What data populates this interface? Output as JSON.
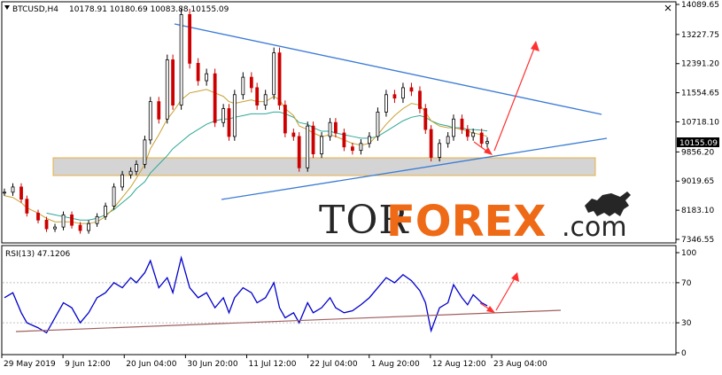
{
  "header": {
    "symbol": "BTCUSD,H4",
    "ohlc": "10178.91 10180.69 10083.88 10155.09"
  },
  "rsi_header": "RSI(13) 47.1206",
  "watermark": {
    "part1": "TOR",
    "part2": "FOREX",
    "part3": ".com"
  },
  "price_tag": "10155.09",
  "colors": {
    "bull": "#000000",
    "bear": "#cc0000",
    "ma_fast": "#c8a030",
    "ma_slow": "#2ea894",
    "trendline": "#3a7bd5",
    "support_zone": "#d4d4d4",
    "support_border": "#e8b040",
    "arrow": "#ff3030",
    "rsi_line": "#0000cc",
    "rsi_trend": "#a06060"
  },
  "icons": {
    "bull_logo": "bull-icon"
  },
  "chart_data": [
    {
      "type": "line",
      "panel": "price",
      "y_ticks": [
        "14089.65",
        "13227.75",
        "12391.20",
        "11554.65",
        "10718.10",
        "9856.20",
        "9019.65",
        "8183.10",
        "7346.55"
      ],
      "y_tick_values": [
        14089.65,
        13227.75,
        12391.2,
        11554.65,
        10718.1,
        9856.2,
        9019.65,
        8183.1,
        7346.55
      ],
      "x_ticks": [
        "29 May 2019",
        "9 Jun 12:00",
        "20 Jun 04:00",
        "30 Jun 20:00",
        "11 Jul 12:00",
        "22 Jul 04:00",
        "1 Aug 20:00",
        "12 Aug 12:00",
        "23 Aug 04:00"
      ],
      "ylim": [
        7346.55,
        14089.65
      ],
      "last_price": 10155.09,
      "x": [
        0,
        3,
        6,
        8,
        12,
        15,
        18,
        21,
        24,
        27,
        30,
        33,
        36,
        39,
        42,
        45,
        47,
        50,
        52,
        55,
        58,
        60,
        63,
        66,
        69,
        72,
        75,
        78,
        80,
        82,
        85,
        88,
        90,
        93,
        96,
        98,
        100,
        103,
        105,
        108,
        110,
        113,
        116,
        118,
        121,
        124,
        127,
        130,
        133,
        136,
        139,
        142,
        145,
        148,
        150,
        152,
        155,
        158,
        160,
        163,
        165,
        167,
        170,
        172
      ],
      "series": [
        {
          "type": "candlestick-close",
          "values": [
            8700,
            8850,
            8500,
            8100,
            7900,
            7650,
            7700,
            8050,
            7750,
            7600,
            7800,
            8000,
            8300,
            8850,
            9200,
            9300,
            9500,
            10200,
            11300,
            10800,
            12500,
            11200,
            13800,
            12400,
            11900,
            12100,
            10700,
            11100,
            10300,
            11500,
            12000,
            11700,
            11200,
            11500,
            12700,
            11200,
            10400,
            10300,
            9400,
            10600,
            9800,
            10300,
            10700,
            10400,
            10000,
            9900,
            10100,
            10300,
            11000,
            11500,
            11400,
            11700,
            11600,
            11100,
            10500,
            9700,
            10100,
            10300,
            10800,
            10500,
            10300,
            10400,
            10100,
            10155
          ]
        },
        {
          "name": "MA fast",
          "values": [
            8600,
            8550,
            8400,
            8250,
            8100,
            7950,
            7850,
            7850,
            7850,
            7800,
            7800,
            7850,
            8000,
            8250,
            8550,
            8850,
            9100,
            9500,
            9950,
            10350,
            10800,
            11000,
            11350,
            11550,
            11600,
            11650,
            11550,
            11450,
            11300,
            11250,
            11300,
            11350,
            11300,
            11300,
            11450,
            11350,
            11100,
            10900,
            10600,
            10500,
            10400,
            10300,
            10350,
            10300,
            10200,
            10100,
            10050,
            10100,
            10350,
            10650,
            10900,
            11100,
            11250,
            11200,
            11000,
            10750,
            10600,
            10550,
            10550,
            10500,
            10450,
            10400,
            10350,
            10300
          ]
        },
        {
          "name": "MA slow",
          "values": [
            null,
            null,
            null,
            null,
            null,
            8100,
            8050,
            8000,
            7950,
            7900,
            7900,
            7950,
            8050,
            8200,
            8400,
            8600,
            8800,
            9000,
            9250,
            9500,
            9750,
            9950,
            10150,
            10350,
            10500,
            10650,
            10750,
            10800,
            10800,
            10850,
            10900,
            10950,
            10950,
            10950,
            11000,
            11000,
            10950,
            10850,
            10700,
            10650,
            10550,
            10450,
            10450,
            10400,
            10350,
            10300,
            10250,
            10250,
            10300,
            10450,
            10600,
            10750,
            10850,
            10900,
            10850,
            10750,
            10650,
            10600,
            10550,
            10550,
            10500,
            10500,
            10480,
            10460
          ]
        }
      ]
    },
    {
      "type": "line",
      "panel": "rsi",
      "y_ticks": [
        "100",
        "70",
        "30",
        "0"
      ],
      "y_tick_values": [
        100,
        70,
        30,
        0
      ],
      "ylim": [
        0,
        100
      ],
      "x": [
        0,
        3,
        6,
        8,
        12,
        15,
        18,
        21,
        24,
        27,
        30,
        33,
        36,
        39,
        42,
        45,
        47,
        50,
        52,
        55,
        58,
        60,
        63,
        66,
        69,
        72,
        75,
        78,
        80,
        82,
        85,
        88,
        90,
        93,
        96,
        98,
        100,
        103,
        105,
        108,
        110,
        113,
        116,
        118,
        121,
        124,
        127,
        130,
        133,
        136,
        139,
        142,
        145,
        148,
        150,
        152,
        155,
        158,
        160,
        163,
        165,
        167,
        170,
        172
      ],
      "series": [
        {
          "name": "RSI(13)",
          "values": [
            55,
            60,
            40,
            30,
            25,
            20,
            35,
            50,
            45,
            30,
            40,
            55,
            60,
            70,
            65,
            75,
            70,
            80,
            92,
            65,
            75,
            60,
            95,
            65,
            55,
            60,
            45,
            55,
            40,
            55,
            65,
            60,
            50,
            55,
            70,
            45,
            35,
            40,
            30,
            50,
            40,
            45,
            55,
            45,
            40,
            42,
            48,
            55,
            65,
            75,
            70,
            78,
            72,
            62,
            50,
            22,
            45,
            50,
            68,
            55,
            48,
            58,
            50,
            47
          ]
        }
      ]
    }
  ]
}
